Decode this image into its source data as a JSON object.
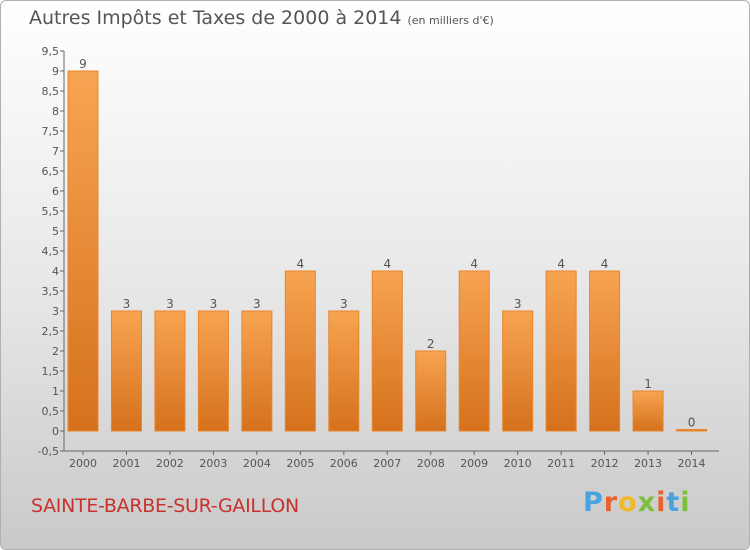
{
  "header": {
    "title": "Autres Impôts et Taxes de 2000 à 2014",
    "unit": "(en milliers d'€)"
  },
  "footer": {
    "location": "SAINTE-BARBE-SUR-GAILLON",
    "brand": "Proxiti"
  },
  "colors": {
    "bar_top": "#f7a452",
    "bar_bottom": "#d5711c",
    "bar_edge": "#e8852a",
    "location": "#c8312e"
  },
  "chart_data": {
    "type": "bar",
    "title": "Autres Impôts et Taxes de 2000 à 2014",
    "xlabel": "",
    "ylabel": "",
    "categories": [
      "2000",
      "2001",
      "2002",
      "2003",
      "2004",
      "2005",
      "2006",
      "2007",
      "2008",
      "2009",
      "2010",
      "2011",
      "2012",
      "2013",
      "2014"
    ],
    "values": [
      9,
      3,
      3,
      3,
      3,
      4,
      3,
      4,
      2,
      4,
      3,
      4,
      4,
      1,
      0
    ],
    "data_labels": [
      "9",
      "3",
      "3",
      "3",
      "3",
      "4",
      "3",
      "4",
      "2",
      "4",
      "3",
      "4",
      "4",
      "1",
      "0"
    ],
    "yticks": [
      "-0,5",
      "0",
      "0,5",
      "1",
      "1,5",
      "2",
      "2,5",
      "3",
      "3,5",
      "4",
      "4,5",
      "5",
      "5,5",
      "6",
      "6,5",
      "7",
      "7,5",
      "8",
      "8,5",
      "9",
      "9,5"
    ],
    "ylim": [
      -0.5,
      9.5
    ],
    "grid": false
  }
}
